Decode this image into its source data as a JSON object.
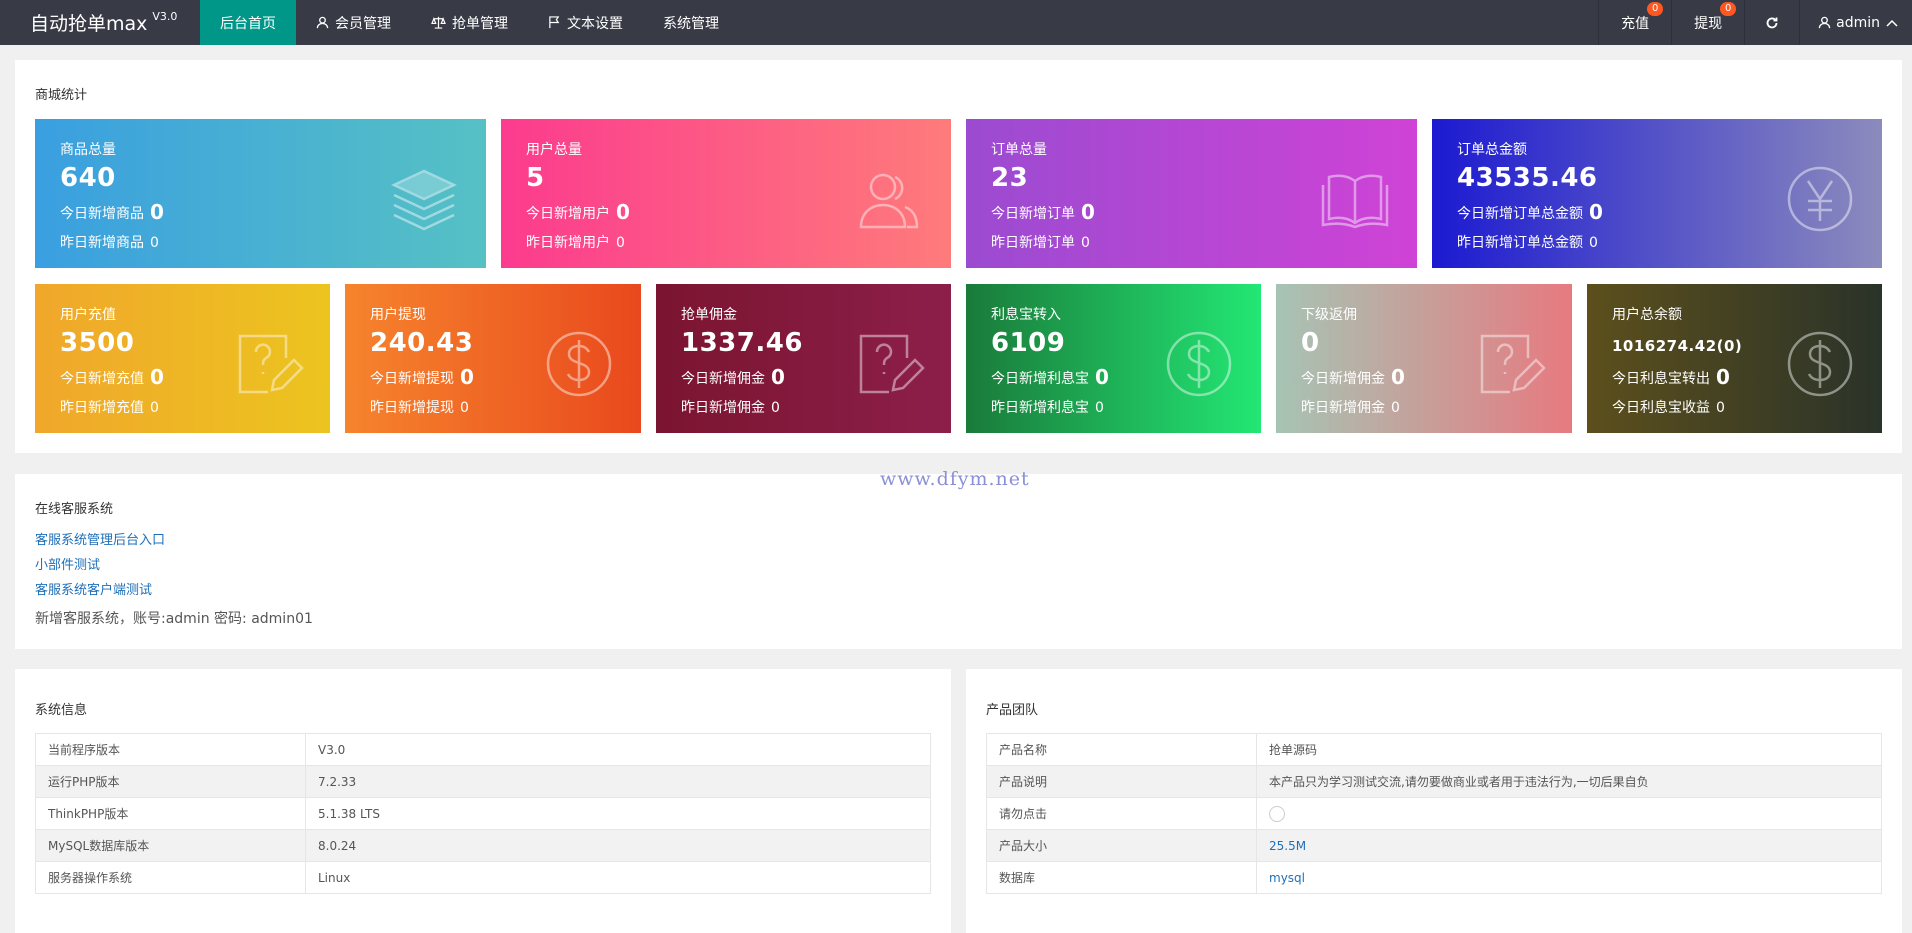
{
  "header": {
    "logo": "自动抢单max",
    "version": "V3.0",
    "nav": [
      "后台首页",
      "会员管理",
      "抢单管理",
      "文本设置",
      "系统管理"
    ],
    "recharge": "充值",
    "recharge_badge": "0",
    "withdraw": "提现",
    "withdraw_badge": "0",
    "user": "admin"
  },
  "stats": {
    "title": "商城统计",
    "cards": [
      {
        "label": "商品总量",
        "value": "640",
        "today_label": "今日新增商品",
        "today_value": "0",
        "yesterday_label": "昨日新增商品",
        "yesterday_value": "0"
      },
      {
        "label": "用户总量",
        "value": "5",
        "today_label": "今日新增用户",
        "today_value": "0",
        "yesterday_label": "昨日新增用户",
        "yesterday_value": "0"
      },
      {
        "label": "订单总量",
        "value": "23",
        "today_label": "今日新增订单",
        "today_value": "0",
        "yesterday_label": "昨日新增订单",
        "yesterday_value": "0"
      },
      {
        "label": "订单总金额",
        "value": "43535.46",
        "today_label": "今日新增订单总金额",
        "today_value": "0",
        "yesterday_label": "昨日新增订单总金额",
        "yesterday_value": "0"
      },
      {
        "label": "用户充值",
        "value": "3500",
        "today_label": "今日新增充值",
        "today_value": "0",
        "yesterday_label": "昨日新增充值",
        "yesterday_value": "0"
      },
      {
        "label": "用户提现",
        "value": "240.43",
        "today_label": "今日新增提现",
        "today_value": "0",
        "yesterday_label": "昨日新增提现",
        "yesterday_value": "0"
      },
      {
        "label": "抢单佣金",
        "value": "1337.46",
        "today_label": "今日新增佣金",
        "today_value": "0",
        "yesterday_label": "昨日新增佣金",
        "yesterday_value": "0"
      },
      {
        "label": "利息宝转入",
        "value": "6109",
        "today_label": "今日新增利息宝",
        "today_value": "0",
        "yesterday_label": "昨日新增利息宝",
        "yesterday_value": "0"
      },
      {
        "label": "下级返佣",
        "value": "0",
        "today_label": "今日新增佣金",
        "today_value": "0",
        "yesterday_label": "昨日新增佣金",
        "yesterday_value": "0"
      },
      {
        "label": "用户总余额",
        "value": "1016274.42(0)",
        "today_label": "今日利息宝转出",
        "today_value": "0",
        "yesterday_label": "今日利息宝收益",
        "yesterday_value": "0"
      }
    ],
    "colors": {
      "c0": [
        "#3a9fe0",
        "#56c1c4"
      ],
      "c1": [
        "#fc3b8e",
        "#fe7b7b"
      ],
      "c2": [
        "#9b4bd1",
        "#cf43d6"
      ],
      "c3": [
        "#1c1ad1",
        "#8c8bbd"
      ],
      "c4": [
        "#f0a72b",
        "#ecc41f"
      ],
      "c5": [
        "#f6842d",
        "#e9491d"
      ],
      "c6": [
        "#7b1430",
        "#8c1f4a"
      ],
      "c7": [
        "#1a7a3a",
        "#23e774"
      ],
      "c8": [
        "#a6c4b4",
        "#e77a80"
      ],
      "c9": [
        "#5c4f1c",
        "#2a3329"
      ]
    }
  },
  "service": {
    "title": "在线客服系统",
    "links": [
      "客服系统管理后台入口",
      "小部件测试",
      "客服系统客户端测试"
    ],
    "note": "新增客服系统，账号:admin 密码: admin01"
  },
  "sysinfo": {
    "title": "系统信息",
    "rows": [
      {
        "k": "当前程序版本",
        "v": "V3.0"
      },
      {
        "k": "运行PHP版本",
        "v": "7.2.33"
      },
      {
        "k": "ThinkPHP版本",
        "v": "5.1.38 LTS"
      },
      {
        "k": "MySQL数据库版本",
        "v": "8.0.24"
      },
      {
        "k": "服务器操作系统",
        "v": "Linux"
      }
    ]
  },
  "team": {
    "title": "产品团队",
    "rows": [
      {
        "k": "产品名称",
        "v": "抢单源码"
      },
      {
        "k": "产品说明",
        "v": "本产品只为学习测试交流,请勿要做商业或者用于违法行为,一切后果自负"
      },
      {
        "k": "请勿点击",
        "v": ""
      },
      {
        "k": "产品大小",
        "v": "25.5M"
      },
      {
        "k": "数据库",
        "v": "mysql"
      }
    ]
  },
  "watermark": "www.dfym.net"
}
